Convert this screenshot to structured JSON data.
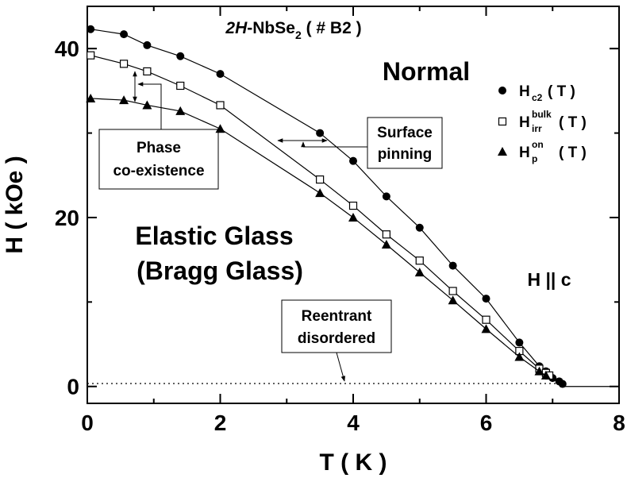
{
  "chart_data": {
    "type": "line",
    "title": [
      "2H",
      "-NbSe",
      "2",
      " ( # B2 )"
    ],
    "xlabel": "T ( K )",
    "ylabel": "H ( kOe )",
    "xlim": [
      0,
      8
    ],
    "ylim": [
      -2,
      45
    ],
    "xticks": [
      0,
      2,
      4,
      6,
      8
    ],
    "yticks": [
      0,
      20,
      40
    ],
    "xminor": [
      1,
      3,
      5,
      7
    ],
    "yminor": [
      10,
      30
    ],
    "series": [
      {
        "name": {
          "base": "H",
          "sub": "c2",
          "rest": " ( T )"
        },
        "marker": "circle",
        "color": "#000000",
        "x": [
          0.05,
          0.55,
          0.9,
          1.4,
          2.0,
          3.5,
          4.0,
          4.5,
          5.0,
          5.5,
          6.0,
          6.5,
          6.8,
          6.9,
          7.0,
          7.1,
          7.15
        ],
        "values": [
          42.3,
          41.7,
          40.4,
          39.1,
          37.0,
          30.0,
          26.7,
          22.5,
          18.8,
          14.3,
          10.4,
          5.2,
          2.4,
          1.8,
          1.0,
          0.6,
          0.3
        ]
      },
      {
        "name": {
          "base": "H",
          "sup": "bulk",
          "sub": "irr",
          "rest": " ( T )"
        },
        "marker": "square",
        "color": "#000000",
        "x": [
          0.05,
          0.55,
          0.9,
          1.4,
          2.0,
          3.5,
          4.0,
          4.5,
          5.0,
          5.5,
          6.0,
          6.5,
          6.8,
          6.9,
          6.95
        ],
        "values": [
          39.2,
          38.2,
          37.3,
          35.6,
          33.3,
          24.5,
          21.4,
          18.0,
          14.9,
          11.3,
          7.9,
          4.2,
          2.1,
          1.6,
          1.3
        ]
      },
      {
        "name": {
          "base": "H",
          "sup": "on",
          "sub": "p",
          "rest": " ( T )"
        },
        "marker": "triangle",
        "color": "#000000",
        "x": [
          0.05,
          0.55,
          0.9,
          1.4,
          2.0,
          3.5,
          4.0,
          4.5,
          5.0,
          5.5,
          6.0,
          6.5,
          6.8,
          6.9
        ],
        "values": [
          34.1,
          33.9,
          33.3,
          32.6,
          30.5,
          22.9,
          20.0,
          16.8,
          13.5,
          10.2,
          6.8,
          3.5,
          1.8,
          1.3
        ]
      }
    ],
    "reentrant_level": 0.35,
    "annotations": {
      "normal": "Normal",
      "elastic": "Elastic Glass",
      "bragg": "(Bragg Glass)",
      "field": "H || c",
      "surface": [
        "Surface",
        "pinning"
      ],
      "phase": [
        "Phase",
        "co-existence"
      ],
      "reentrant": [
        "Reentrant",
        "disordered"
      ]
    }
  }
}
